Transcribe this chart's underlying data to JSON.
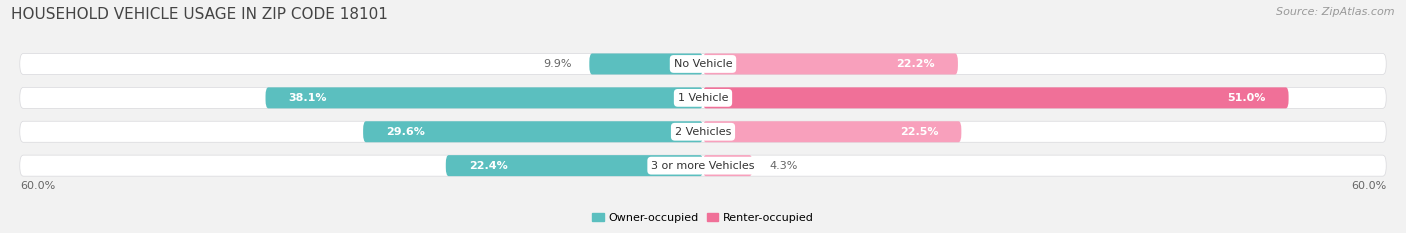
{
  "title": "HOUSEHOLD VEHICLE USAGE IN ZIP CODE 18101",
  "source": "Source: ZipAtlas.com",
  "categories": [
    "No Vehicle",
    "1 Vehicle",
    "2 Vehicles",
    "3 or more Vehicles"
  ],
  "owner_values": [
    9.9,
    38.1,
    29.6,
    22.4
  ],
  "renter_values": [
    22.2,
    51.0,
    22.5,
    4.3
  ],
  "axis_max": 60.0,
  "owner_color": "#5BBFBF",
  "renter_color": "#F07098",
  "renter_color_light": "#F8A0BC",
  "background_color": "#F2F2F2",
  "bar_bg_color": "#E6E6EA",
  "bar_bg_border": "#D8D8DC",
  "title_color": "#444444",
  "label_dark": "#666666",
  "label_white": "#FFFFFF",
  "title_fontsize": 11,
  "source_fontsize": 8,
  "value_fontsize": 8,
  "cat_fontsize": 8,
  "legend_fontsize": 8,
  "axis_label_fontsize": 8
}
